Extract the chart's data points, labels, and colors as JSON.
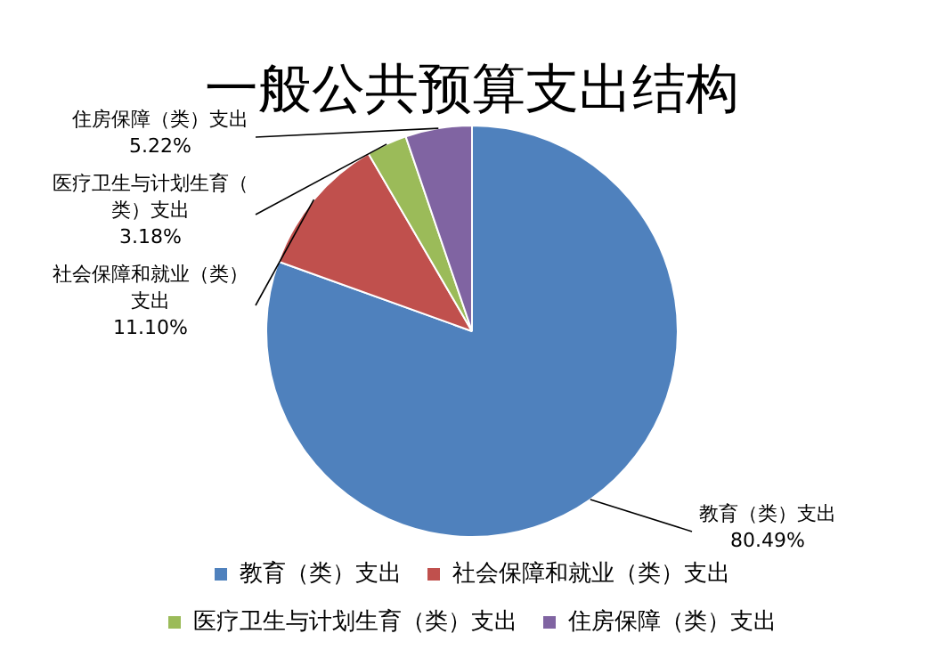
{
  "chart_data": {
    "type": "pie",
    "title": "一般公共预算支出结构",
    "categories": [
      "教育（类）支出",
      "社会保障和就业（类）支出",
      "医疗卫生与计划生育（类）支出",
      "住房保障（类）支出"
    ],
    "values": [
      80.49,
      11.1,
      3.18,
      5.22
    ],
    "colors": [
      "#4f81bd",
      "#c0504d",
      "#9bbb59",
      "#8064a2"
    ],
    "value_labels": [
      "80.49%",
      "11.10%",
      "3.18%",
      "5.22%"
    ],
    "legend": "bottom"
  }
}
